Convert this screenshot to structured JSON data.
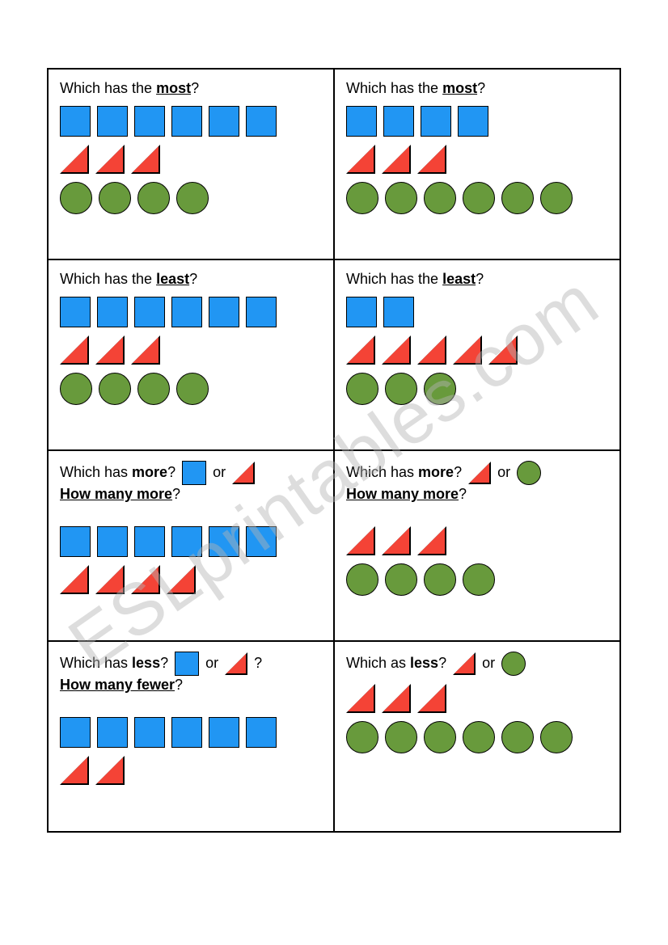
{
  "colors": {
    "square_fill": "#2196f3",
    "square_stroke": "#000000",
    "triangle_fill": "#f44336",
    "triangle_stroke": "#000000",
    "circle_fill": "#689a3c",
    "circle_stroke": "#000000",
    "text": "#000000",
    "watermark": "rgba(180,180,180,0.45)"
  },
  "shape_size": 38,
  "watermark_text": "ESLprintables.com",
  "cells": [
    {
      "prompt_prefix": "Which has the ",
      "prompt_keyword": "most",
      "prompt_suffix": "?",
      "keyword_bold": true,
      "keyword_underline": true,
      "inline_shapes": [],
      "sub_prompt": null,
      "rows": [
        {
          "shape": "square",
          "count": 6
        },
        {
          "shape": "triangle",
          "count": 3
        },
        {
          "shape": "circle",
          "count": 4
        }
      ]
    },
    {
      "prompt_prefix": "Which has the ",
      "prompt_keyword": "most",
      "prompt_suffix": "?",
      "keyword_bold": true,
      "keyword_underline": true,
      "inline_shapes": [],
      "sub_prompt": null,
      "rows": [
        {
          "shape": "square",
          "count": 4
        },
        {
          "shape": "triangle",
          "count": 3
        },
        {
          "shape": "circle",
          "count": 6
        }
      ]
    },
    {
      "prompt_prefix": "Which has the ",
      "prompt_keyword": "least",
      "prompt_suffix": "?",
      "keyword_bold": true,
      "keyword_underline": true,
      "inline_shapes": [],
      "sub_prompt": null,
      "rows": [
        {
          "shape": "square",
          "count": 6
        },
        {
          "shape": "triangle",
          "count": 3
        },
        {
          "shape": "circle",
          "count": 4
        }
      ]
    },
    {
      "prompt_prefix": "Which has the ",
      "prompt_keyword": "least",
      "prompt_suffix": "?",
      "keyword_bold": true,
      "keyword_underline": true,
      "inline_shapes": [],
      "sub_prompt": null,
      "rows": [
        {
          "shape": "square",
          "count": 2
        },
        {
          "shape": "triangle",
          "count": 5
        },
        {
          "shape": "circle",
          "count": 3
        }
      ]
    },
    {
      "prompt_prefix": "Which has ",
      "prompt_keyword": "more",
      "prompt_suffix": "? ",
      "keyword_bold": true,
      "keyword_underline": false,
      "inline_shapes": [
        "square",
        "or",
        "triangle"
      ],
      "sub_prompt": "How many more",
      "sub_suffix": "?",
      "rows": [
        {
          "shape": "square",
          "count": 6
        },
        {
          "shape": "triangle",
          "count": 4
        }
      ]
    },
    {
      "prompt_prefix": "Which has ",
      "prompt_keyword": "more",
      "prompt_suffix": "? ",
      "keyword_bold": true,
      "keyword_underline": false,
      "inline_shapes": [
        "triangle",
        "or",
        "circle"
      ],
      "sub_prompt": "How many more",
      "sub_suffix": "?",
      "rows": [
        {
          "shape": "triangle",
          "count": 3
        },
        {
          "shape": "circle",
          "count": 4
        }
      ]
    },
    {
      "prompt_prefix": "Which has ",
      "prompt_keyword": "less",
      "prompt_suffix": "? ",
      "keyword_bold": true,
      "keyword_underline": false,
      "inline_shapes": [
        "square",
        "or",
        "triangle",
        "?"
      ],
      "sub_prompt": "How many fewer",
      "sub_suffix": "?",
      "rows": [
        {
          "shape": "square",
          "count": 6
        },
        {
          "shape": "triangle",
          "count": 2
        }
      ]
    },
    {
      "prompt_prefix": "Which as ",
      "prompt_keyword": "less",
      "prompt_suffix": "? ",
      "keyword_bold": true,
      "keyword_underline": false,
      "inline_shapes": [
        "triangle",
        "or",
        "circle"
      ],
      "sub_prompt": null,
      "rows": [
        {
          "shape": "triangle",
          "count": 3
        },
        {
          "shape": "circle",
          "count": 6
        }
      ]
    }
  ]
}
